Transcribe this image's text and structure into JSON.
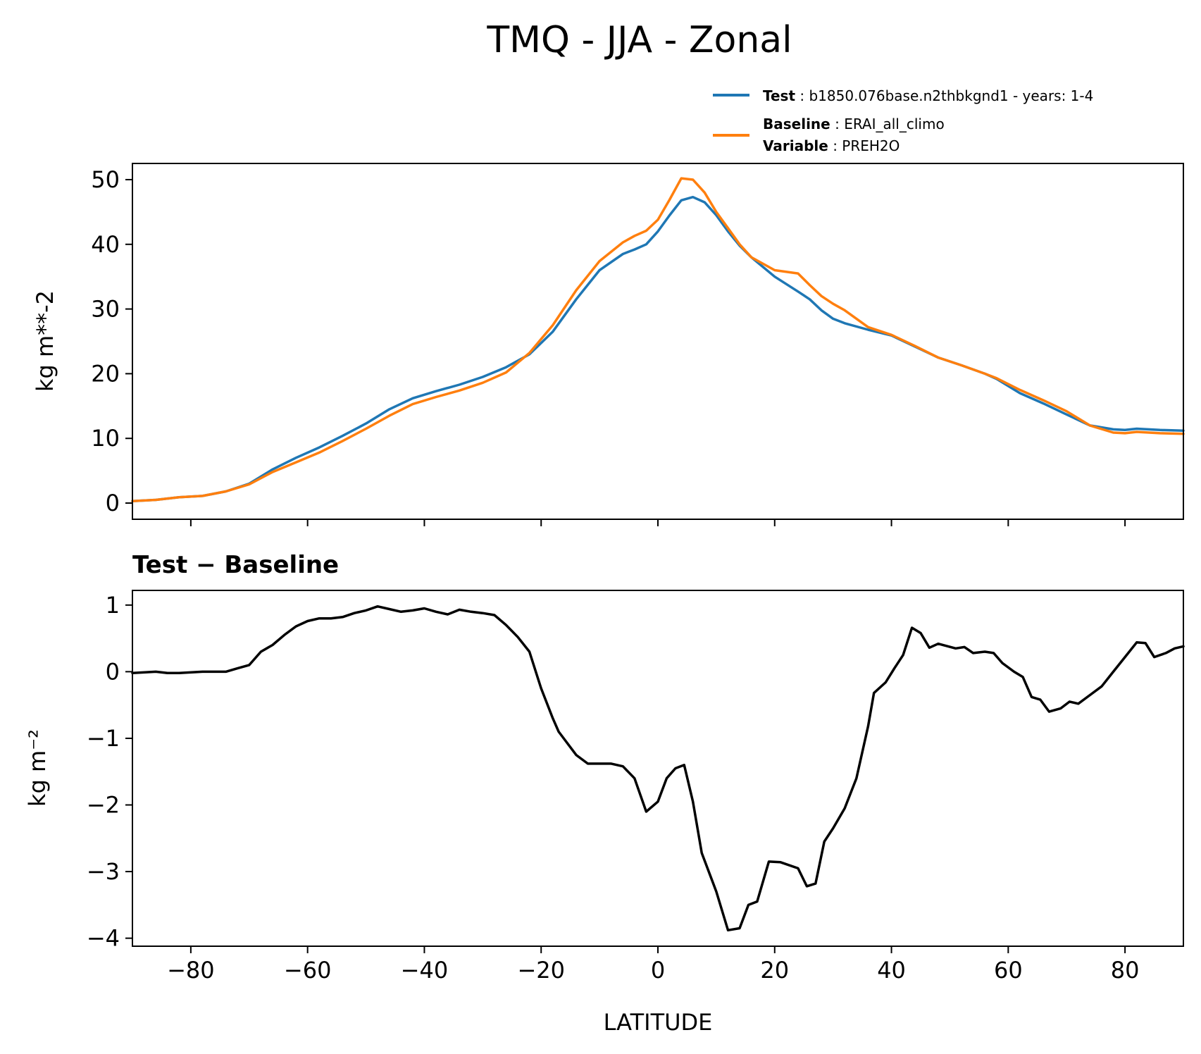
{
  "chart_data": [
    {
      "type": "line",
      "title": "TMQ - JJA - Zonal",
      "xlabel": "",
      "ylabel": "kg m**-2",
      "xlim": [
        -90,
        90
      ],
      "ylim": [
        -2.5,
        52.5
      ],
      "xticks": [
        -80,
        -60,
        -40,
        -20,
        0,
        20,
        40,
        60,
        80
      ],
      "yticks": [
        0,
        10,
        20,
        30,
        40,
        50
      ],
      "x": [
        -90,
        -86,
        -82,
        -78,
        -74,
        -70,
        -66,
        -62,
        -58,
        -54,
        -50,
        -46,
        -42,
        -38,
        -34,
        -30,
        -26,
        -22,
        -18,
        -14,
        -10,
        -6,
        -4,
        -2,
        0,
        2,
        4,
        6,
        8,
        10,
        12,
        14,
        16,
        20,
        24,
        26,
        28,
        30,
        32,
        36,
        40,
        44,
        48,
        52,
        56,
        58,
        62,
        66,
        70,
        74,
        78,
        80,
        82,
        86,
        90
      ],
      "series": [
        {
          "name": "Test",
          "color": "#1f77b4",
          "values": [
            0.3,
            0.5,
            0.9,
            1.1,
            1.8,
            3.0,
            5.2,
            7.0,
            8.6,
            10.4,
            12.3,
            14.5,
            16.2,
            17.3,
            18.3,
            19.5,
            21.0,
            23.0,
            26.5,
            31.5,
            36.0,
            38.5,
            39.2,
            40.0,
            42.0,
            44.5,
            46.8,
            47.3,
            46.5,
            44.5,
            42.0,
            39.8,
            38.0,
            35.0,
            32.7,
            31.5,
            29.8,
            28.5,
            27.8,
            26.8,
            25.9,
            24.2,
            22.5,
            21.3,
            20.0,
            19.2,
            17.0,
            15.4,
            13.7,
            12.0,
            11.4,
            11.3,
            11.5,
            11.3,
            11.2
          ]
        },
        {
          "name": "Baseline",
          "color": "#ff7f0e",
          "values": [
            0.3,
            0.5,
            0.9,
            1.1,
            1.8,
            2.9,
            4.8,
            6.3,
            7.8,
            9.6,
            11.5,
            13.5,
            15.3,
            16.4,
            17.4,
            18.6,
            20.2,
            23.2,
            27.5,
            32.9,
            37.4,
            40.3,
            41.3,
            42.1,
            43.8,
            46.9,
            50.2,
            50.0,
            48.0,
            45.0,
            42.5,
            40.0,
            38.0,
            36.0,
            35.5,
            33.7,
            32.0,
            30.8,
            29.8,
            27.2,
            26.0,
            24.3,
            22.5,
            21.3,
            20.0,
            19.3,
            17.5,
            15.9,
            14.2,
            12.0,
            10.9,
            10.8,
            11.0,
            10.8,
            10.7
          ]
        }
      ],
      "legend": {
        "location": "top-right",
        "entries": [
          {
            "series": "Test",
            "key": "Test",
            "text": "b1850.076base.n2thbkgnd1 - years: 1-4"
          },
          {
            "series": "Baseline",
            "key": "Baseline",
            "text": "ERAI_all_climo"
          },
          {
            "series": "Baseline",
            "key": "Variable",
            "text": "PREH2O"
          }
        ]
      }
    },
    {
      "type": "line",
      "title": "Test − Baseline",
      "xlabel": "LATITUDE",
      "ylabel": "kg m⁻²",
      "xlim": [
        -90,
        90
      ],
      "ylim": [
        -4.12,
        1.22
      ],
      "xticks": [
        -80,
        -60,
        -40,
        -20,
        0,
        20,
        40,
        60,
        80
      ],
      "yticks": [
        1,
        0,
        -1,
        -2,
        -3,
        -4
      ],
      "series": [
        {
          "name": "Test − Baseline",
          "color": "#000000",
          "x": [
            -90,
            -86,
            -84,
            -82,
            -78,
            -74,
            -72,
            -70,
            -68,
            -66,
            -64,
            -62,
            -60,
            -58,
            -56,
            -54,
            -52,
            -50,
            -48,
            -46,
            -44,
            -42,
            -40,
            -38,
            -36,
            -34,
            -32,
            -30,
            -28,
            -26,
            -24,
            -22,
            -20,
            -18,
            -17,
            -14,
            -12,
            -10,
            -8,
            -6,
            -4,
            -2,
            0,
            1.5,
            3,
            4.5,
            6,
            7.5,
            10,
            12,
            14,
            15.5,
            17,
            19,
            21,
            24,
            25.5,
            27,
            28.5,
            30,
            32,
            34,
            36,
            37,
            39,
            40.5,
            42,
            43.5,
            45,
            46.5,
            48,
            51,
            52.5,
            54,
            56,
            57.5,
            59,
            61,
            62.5,
            64,
            65.5,
            67,
            69,
            70.5,
            72,
            74,
            76,
            78,
            80,
            82,
            83.5,
            85,
            87,
            88.5,
            90
          ],
          "values": [
            -0.02,
            0.0,
            -0.02,
            -0.02,
            0.0,
            0.0,
            0.05,
            0.1,
            0.3,
            0.4,
            0.55,
            0.68,
            0.76,
            0.8,
            0.8,
            0.82,
            0.88,
            0.92,
            0.98,
            0.94,
            0.9,
            0.92,
            0.95,
            0.9,
            0.86,
            0.93,
            0.9,
            0.88,
            0.85,
            0.7,
            0.52,
            0.3,
            -0.25,
            -0.7,
            -0.9,
            -1.25,
            -1.38,
            -1.38,
            -1.38,
            -1.42,
            -1.6,
            -2.1,
            -1.95,
            -1.6,
            -1.45,
            -1.4,
            -1.95,
            -2.72,
            -3.3,
            -3.88,
            -3.85,
            -3.5,
            -3.45,
            -2.85,
            -2.86,
            -2.95,
            -3.22,
            -3.18,
            -2.55,
            -2.35,
            -2.05,
            -1.6,
            -0.82,
            -0.32,
            -0.16,
            0.05,
            0.25,
            0.66,
            0.58,
            0.36,
            0.42,
            0.35,
            0.37,
            0.28,
            0.3,
            0.28,
            0.13,
            0.0,
            -0.08,
            -0.38,
            -0.42,
            -0.6,
            -0.55,
            -0.45,
            -0.48,
            -0.35,
            -0.22,
            0.0,
            0.22,
            0.44,
            0.43,
            0.22,
            0.28,
            0.35,
            0.38
          ]
        }
      ]
    }
  ]
}
